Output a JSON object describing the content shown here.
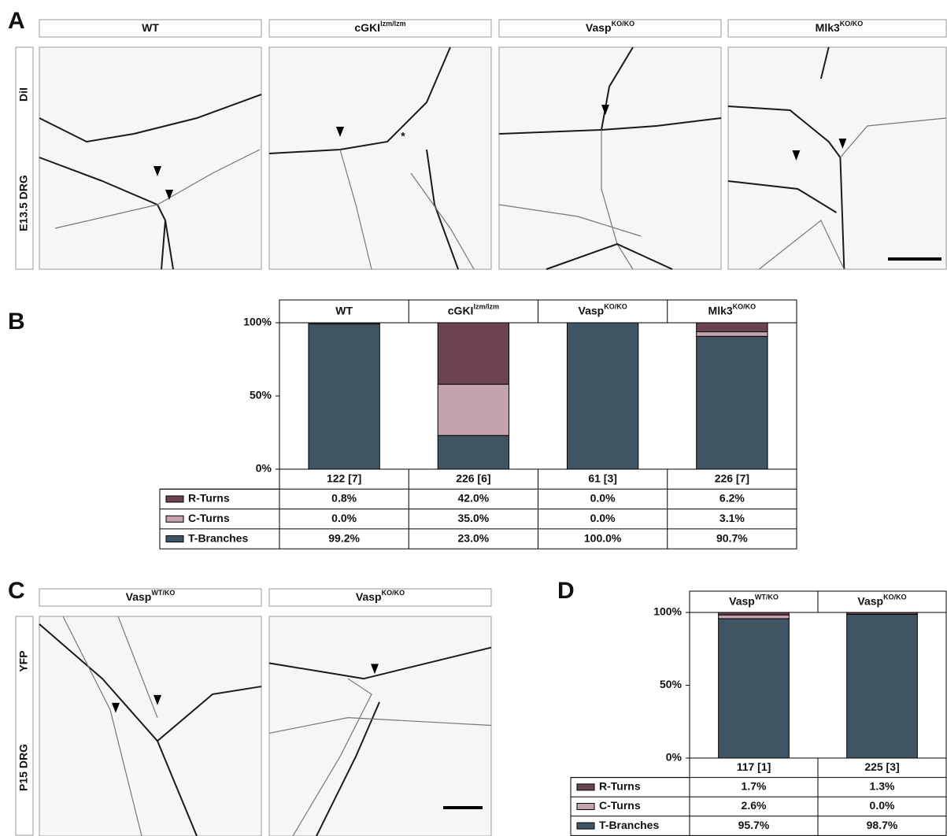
{
  "panel_labels": [
    "A",
    "B",
    "C",
    "D"
  ],
  "panel_a": {
    "headers": [
      {
        "text": "WT"
      },
      {
        "text": "cGKI",
        "sup": "lzm/lzm"
      },
      {
        "text": "Vasp",
        "sup": "KO/KO"
      },
      {
        "text": "Mlk3",
        "sup": "KO/KO"
      }
    ],
    "row_labels": [
      "DiI",
      "E13.5 DRG"
    ],
    "annotation": "*"
  },
  "panel_c": {
    "headers": [
      {
        "text": "Vasp",
        "sup": "WT/KO"
      },
      {
        "text": "Vasp",
        "sup": "KO/KO"
      }
    ],
    "row_labels": [
      "YFP",
      "P15 DRG"
    ]
  },
  "chart_data": [
    {
      "type": "bar",
      "stacked": true,
      "categories": [
        "WT",
        "cGKI",
        "Vasp",
        "Mlk3"
      ],
      "category_superscripts": [
        null,
        "lzm/lzm",
        "KO/KO",
        "KO/KO"
      ],
      "n_labels": [
        "122 [7]",
        "226 [6]",
        "61 [3]",
        "226 [7]"
      ],
      "series": [
        {
          "name": "R-Turns",
          "color": "#6b4450",
          "values": [
            0.8,
            42.0,
            0.0,
            6.2
          ],
          "value_labels": [
            "0.8%",
            "42.0%",
            "0.0%",
            "6.2%"
          ]
        },
        {
          "name": "C-Turns",
          "color": "#c4a3ae",
          "values": [
            0.0,
            35.0,
            0.0,
            3.1
          ],
          "value_labels": [
            "0.0%",
            "35.0%",
            "0.0%",
            "3.1%"
          ]
        },
        {
          "name": "T-Branches",
          "color": "#3f5564",
          "values": [
            99.2,
            23.0,
            100.0,
            90.7
          ],
          "value_labels": [
            "99.2%",
            "23.0%",
            "100.0%",
            "90.7%"
          ]
        }
      ],
      "ylim": [
        0,
        100
      ],
      "yticks": [
        {
          "value": 0,
          "label": "0%"
        },
        {
          "value": 50,
          "label": "50%"
        },
        {
          "value": 100,
          "label": "100%"
        }
      ]
    },
    {
      "type": "bar",
      "stacked": true,
      "categories": [
        "Vasp",
        "Vasp"
      ],
      "category_superscripts": [
        "WT/KO",
        "KO/KO"
      ],
      "n_labels": [
        "117 [1]",
        "225 [3]"
      ],
      "series": [
        {
          "name": "R-Turns",
          "color": "#6b4450",
          "values": [
            1.7,
            1.3
          ],
          "value_labels": [
            "1.7%",
            "1.3%"
          ]
        },
        {
          "name": "C-Turns",
          "color": "#c4a3ae",
          "values": [
            2.6,
            0.0
          ],
          "value_labels": [
            "2.6%",
            "0.0%"
          ]
        },
        {
          "name": "T-Branches",
          "color": "#3f5564",
          "values": [
            95.7,
            98.7
          ],
          "value_labels": [
            "95.7%",
            "98.7%"
          ]
        }
      ],
      "ylim": [
        0,
        100
      ],
      "yticks": [
        {
          "value": 0,
          "label": "0%"
        },
        {
          "value": 50,
          "label": "50%"
        },
        {
          "value": 100,
          "label": "100%"
        }
      ]
    }
  ]
}
